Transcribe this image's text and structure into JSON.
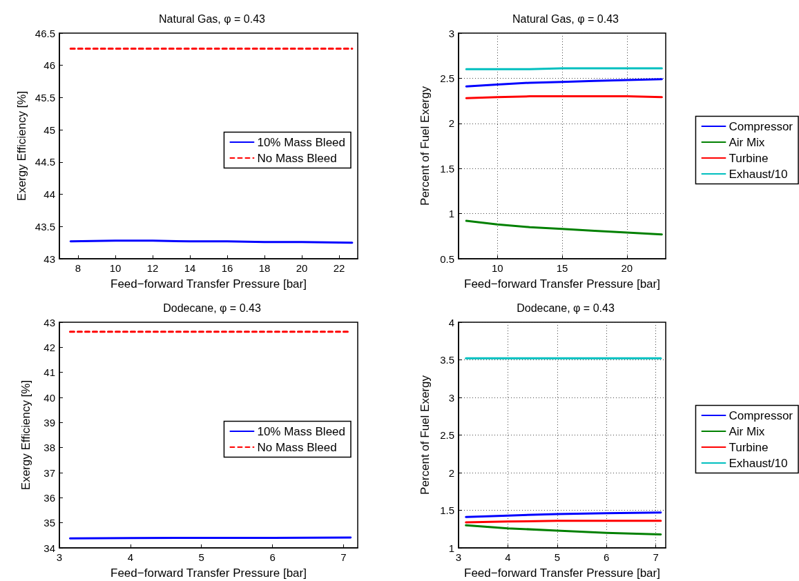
{
  "chart_data": [
    {
      "type": "line",
      "title": "Natural Gas, φ = 0.43",
      "xlabel": "Feed−forward Transfer Pressure [bar]",
      "ylabel": "Exergy Efficiency [%]",
      "x": [
        7.6,
        10,
        12,
        14,
        16,
        18,
        20,
        22.7
      ],
      "series": [
        {
          "name": "10% Mass Bleed",
          "color": "#0000ff",
          "values": [
            43.27,
            43.28,
            43.28,
            43.27,
            43.27,
            43.26,
            43.26,
            43.25
          ]
        },
        {
          "name": "No Mass Bleed",
          "color": "#ff0000",
          "line_style": "dashed",
          "values": [
            46.26,
            46.26,
            46.26,
            46.26,
            46.26,
            46.26,
            46.26,
            46.26
          ]
        }
      ],
      "xlim": [
        7,
        23
      ],
      "xticks": [
        8,
        10,
        12,
        14,
        16,
        18,
        20,
        22
      ],
      "ylim": [
        43,
        46.5
      ],
      "yticks": [
        43,
        43.5,
        44,
        44.5,
        45,
        45.5,
        46,
        46.5
      ],
      "grid": false,
      "legend": "right",
      "marker": "none"
    },
    {
      "type": "line",
      "title": "Natural Gas, φ = 0.43",
      "xlabel": "Feed−forward Transfer Pressure [bar]",
      "ylabel": "Percent of Fuel Exergy",
      "x": [
        7.6,
        10,
        12.5,
        15,
        17.5,
        20,
        22.7
      ],
      "series": [
        {
          "name": "Compressor",
          "color": "#0000ff",
          "values": [
            2.41,
            2.43,
            2.45,
            2.46,
            2.47,
            2.48,
            2.49
          ]
        },
        {
          "name": "Air Mix",
          "color": "#008000",
          "values": [
            0.92,
            0.88,
            0.85,
            0.83,
            0.81,
            0.79,
            0.77
          ]
        },
        {
          "name": "Turbine",
          "color": "#ff0000",
          "values": [
            2.28,
            2.29,
            2.3,
            2.3,
            2.3,
            2.3,
            2.29
          ]
        },
        {
          "name": "Exhaust/10",
          "color": "#00bfbf",
          "values": [
            2.6,
            2.6,
            2.6,
            2.61,
            2.61,
            2.61,
            2.61
          ]
        }
      ],
      "xlim": [
        7,
        23
      ],
      "xticks": [
        10,
        15,
        20
      ],
      "ylim": [
        0.5,
        3
      ],
      "yticks": [
        0.5,
        1,
        1.5,
        2,
        2.5,
        3
      ],
      "grid": true,
      "legend": "outside right",
      "marker": "none"
    },
    {
      "type": "line",
      "title": "Dodecane, φ = 0.43",
      "xlabel": "Feed−forward Transfer Pressure [bar]",
      "ylabel": "Exergy Efficiency [%]",
      "x": [
        3.15,
        4,
        5,
        6,
        7.1
      ],
      "series": [
        {
          "name": "10% Mass Bleed",
          "color": "#0000ff",
          "values": [
            34.38,
            34.39,
            34.4,
            34.4,
            34.41
          ]
        },
        {
          "name": "No Mass Bleed",
          "color": "#ff0000",
          "line_style": "dashed",
          "values": [
            42.62,
            42.62,
            42.62,
            42.62,
            42.62
          ]
        }
      ],
      "xlim": [
        3,
        7.2
      ],
      "xticks": [
        3,
        4,
        5,
        6,
        7
      ],
      "ylim": [
        34,
        43
      ],
      "yticks": [
        34,
        35,
        36,
        37,
        38,
        39,
        40,
        41,
        42,
        43
      ],
      "grid": false,
      "legend": "right",
      "marker": "none"
    },
    {
      "type": "line",
      "title": "Dodecane, φ = 0.43",
      "xlabel": "Feed−forward Transfer Pressure [bar]",
      "ylabel": "Percent of Fuel Exergy",
      "x": [
        3.15,
        4,
        5,
        6,
        7.1
      ],
      "series": [
        {
          "name": "Compressor",
          "color": "#0000ff",
          "values": [
            1.41,
            1.43,
            1.45,
            1.46,
            1.47
          ]
        },
        {
          "name": "Air Mix",
          "color": "#008000",
          "values": [
            1.3,
            1.26,
            1.23,
            1.2,
            1.18
          ]
        },
        {
          "name": "Turbine",
          "color": "#ff0000",
          "values": [
            1.34,
            1.35,
            1.36,
            1.36,
            1.36
          ]
        },
        {
          "name": "Exhaust/10",
          "color": "#00bfbf",
          "values": [
            3.52,
            3.52,
            3.52,
            3.52,
            3.52
          ]
        }
      ],
      "xlim": [
        3,
        7.2
      ],
      "xticks": [
        3,
        4,
        5,
        6,
        7
      ],
      "ylim": [
        1,
        4
      ],
      "yticks": [
        1,
        1.5,
        2,
        2.5,
        3,
        3.5,
        4
      ],
      "grid": true,
      "legend": "outside right",
      "marker": "none"
    }
  ]
}
